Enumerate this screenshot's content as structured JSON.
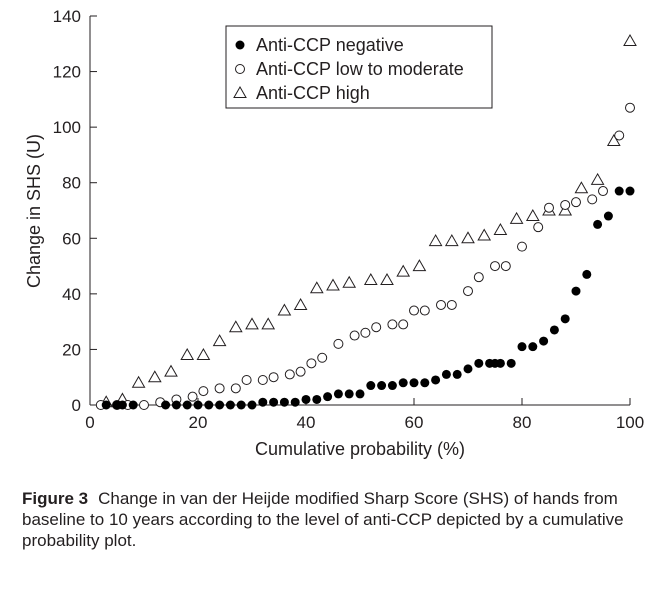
{
  "chart_data": {
    "type": "scatter",
    "title": "",
    "xlabel": "Cumulative probability (%)",
    "ylabel": "Change in SHS (U)",
    "xlim": [
      0,
      100
    ],
    "ylim": [
      0,
      140
    ],
    "xticks": [
      0,
      20,
      40,
      60,
      80,
      100
    ],
    "yticks": [
      0,
      20,
      40,
      60,
      80,
      100,
      120,
      140
    ],
    "grid": false,
    "legend_position": "top-right",
    "series": [
      {
        "name": "Anti-CCP negative",
        "marker": "filled-circle",
        "x": [
          3,
          5,
          6,
          8,
          14,
          16,
          18,
          20,
          22,
          24,
          26,
          28,
          30,
          32,
          34,
          36,
          38,
          40,
          42,
          44,
          46,
          48,
          50,
          52,
          54,
          56,
          58,
          60,
          62,
          64,
          66,
          68,
          70,
          72,
          74,
          75,
          76,
          78,
          80,
          82,
          84,
          86,
          88,
          90,
          92,
          94,
          96,
          98,
          100
        ],
        "y": [
          0,
          0,
          0,
          0,
          0,
          0,
          0,
          0,
          0,
          0,
          0,
          0,
          0,
          1,
          1,
          1,
          1,
          2,
          2,
          3,
          4,
          4,
          4,
          7,
          7,
          7,
          8,
          8,
          8,
          9,
          11,
          11,
          13,
          15,
          15,
          15,
          15,
          15,
          21,
          21,
          23,
          27,
          31,
          41,
          47,
          65,
          68,
          77,
          77
        ]
      },
      {
        "name": "Anti-CCP low to moderate",
        "marker": "open-circle",
        "x": [
          2,
          5,
          7,
          10,
          13,
          16,
          19,
          21,
          24,
          27,
          29,
          32,
          34,
          37,
          39,
          41,
          43,
          46,
          49,
          51,
          53,
          56,
          58,
          60,
          62,
          65,
          67,
          70,
          72,
          75,
          77,
          80,
          83,
          85,
          88,
          90,
          93,
          95,
          98,
          100
        ],
        "y": [
          0,
          0,
          0,
          0,
          1,
          2,
          3,
          5,
          6,
          6,
          9,
          9,
          10,
          11,
          12,
          15,
          17,
          22,
          25,
          26,
          28,
          29,
          29,
          34,
          34,
          36,
          36,
          41,
          46,
          50,
          50,
          57,
          64,
          71,
          72,
          73,
          74,
          77,
          97,
          107
        ]
      },
      {
        "name": "Anti-CCP high",
        "marker": "open-triangle",
        "x": [
          3,
          6,
          9,
          12,
          15,
          18,
          21,
          24,
          27,
          30,
          33,
          36,
          39,
          42,
          45,
          48,
          52,
          55,
          58,
          61,
          64,
          67,
          70,
          73,
          76,
          79,
          82,
          85,
          88,
          91,
          94,
          97,
          100
        ],
        "y": [
          1,
          2,
          8,
          10,
          12,
          18,
          18,
          23,
          28,
          29,
          29,
          34,
          36,
          42,
          43,
          44,
          45,
          45,
          48,
          50,
          59,
          59,
          60,
          61,
          63,
          67,
          68,
          70,
          70,
          78,
          81,
          95,
          131
        ]
      }
    ]
  },
  "caption": {
    "label": "Figure 3",
    "text": "Change in van der Heijde modified Sharp Score (SHS) of hands from baseline to 10 years according to the level of anti-CCP depicted by a cumulative probability plot."
  }
}
